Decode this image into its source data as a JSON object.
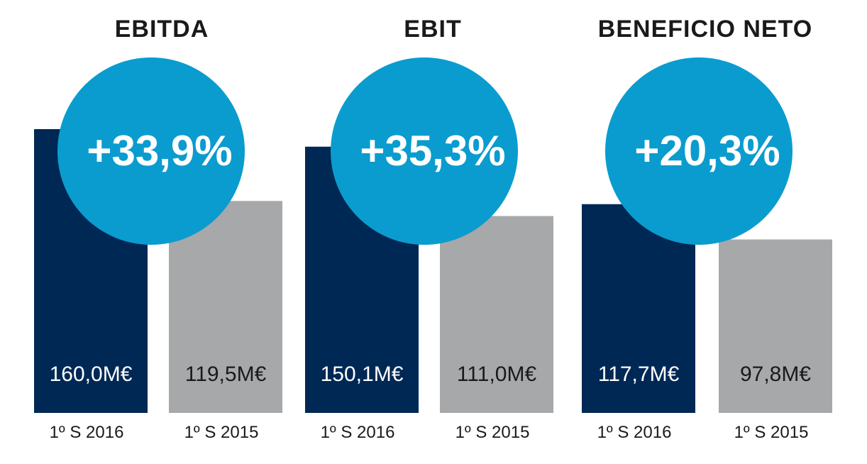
{
  "chart_data": [
    {
      "type": "bar",
      "title": "EBITDA",
      "categories": [
        "1º S 2016",
        "1º S 2015"
      ],
      "values": [
        160.0,
        119.5
      ],
      "value_labels": [
        "160,0M€",
        "119,5M€"
      ],
      "change_label": "+33,9%",
      "change_value": 33.9
    },
    {
      "type": "bar",
      "title": "EBIT",
      "categories": [
        "1º S 2016",
        "1º S 2015"
      ],
      "values": [
        150.1,
        111.0
      ],
      "value_labels": [
        "150,1M€",
        "111,0M€"
      ],
      "change_label": "+35,3%",
      "change_value": 35.3
    },
    {
      "type": "bar",
      "title": "BENEFICIO NETO",
      "categories": [
        "1º S 2016",
        "1º S 2015"
      ],
      "values": [
        117.7,
        97.8
      ],
      "value_labels": [
        "117,7M€",
        "97,8M€"
      ],
      "change_label": "+20,3%",
      "change_value": 20.3
    }
  ],
  "colors": {
    "bar_2016": "#002855",
    "bar_2015": "#a7a8aa",
    "circle": "#0a9ccf",
    "value_on_dark": "#ffffff",
    "value_on_light": "#1a1a1a"
  }
}
